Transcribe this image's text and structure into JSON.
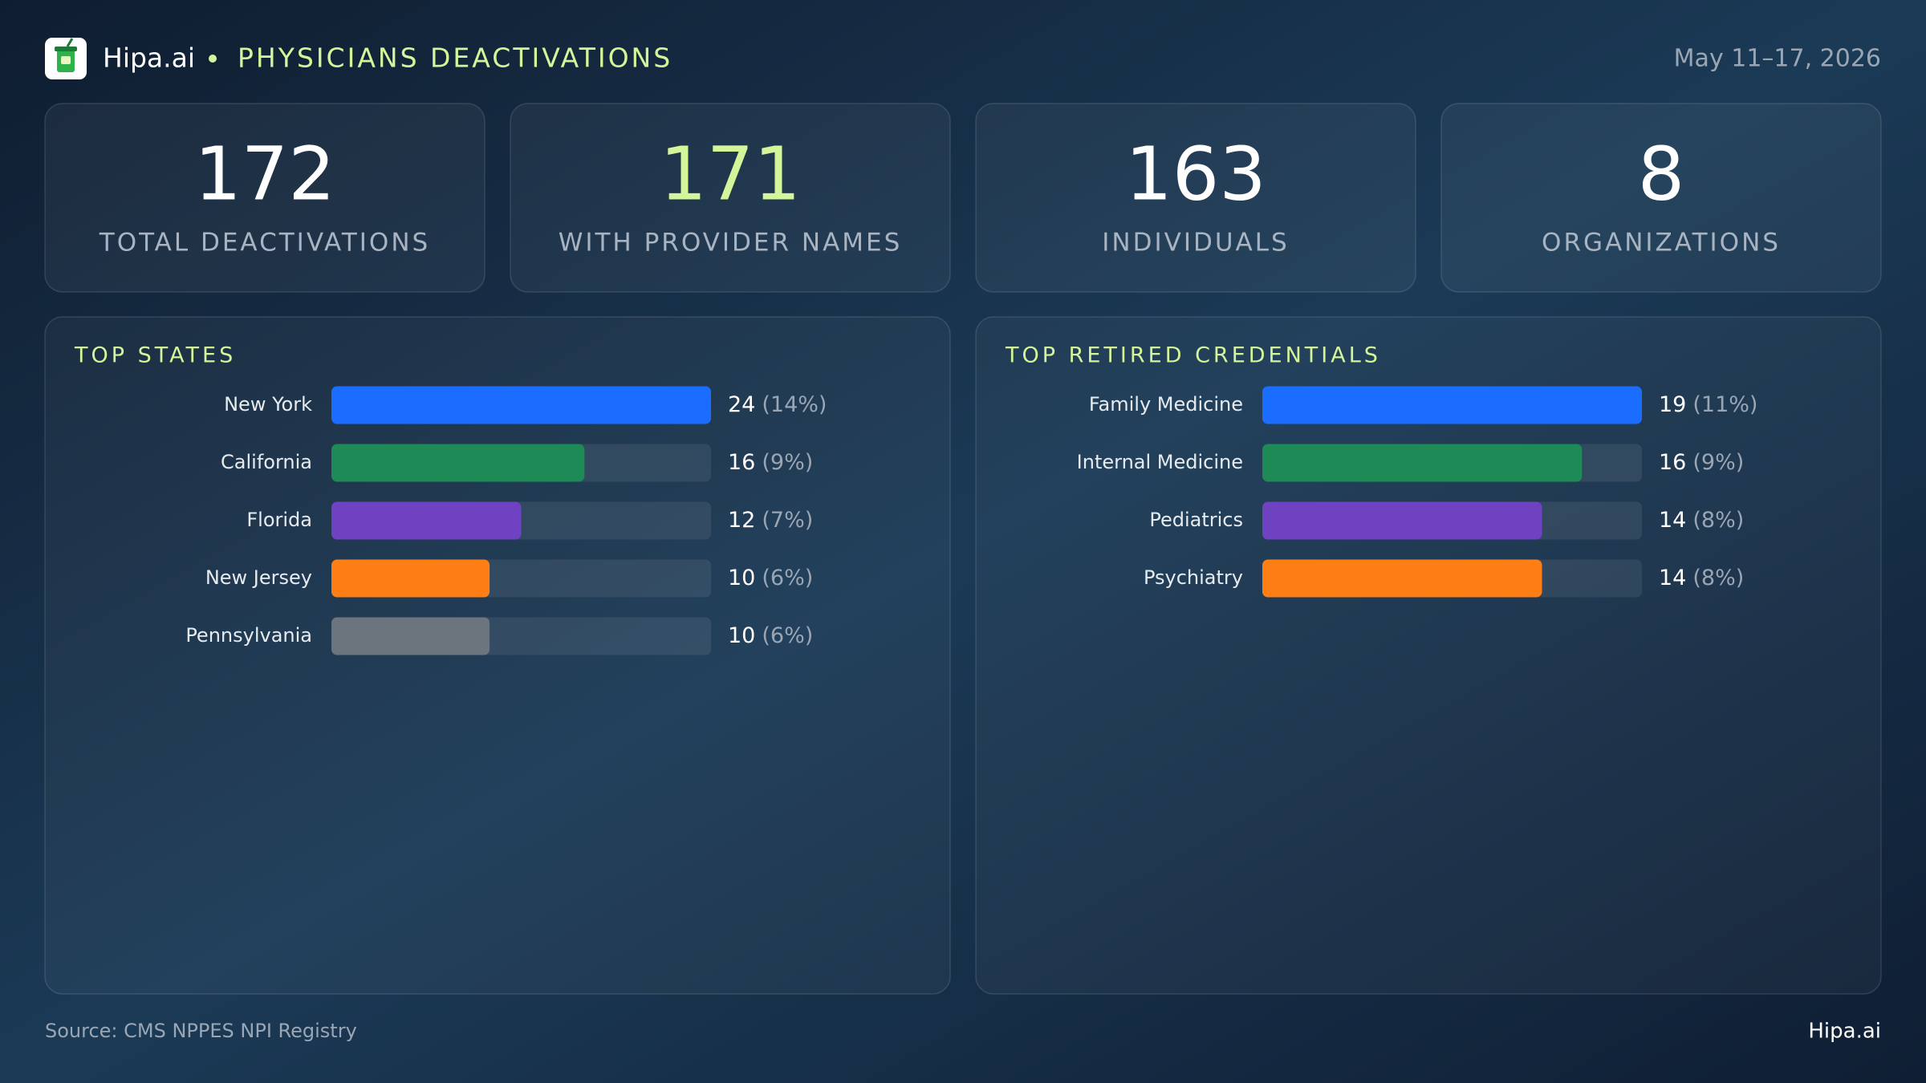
{
  "header": {
    "brand": "Hipa.ai",
    "title": "PHYSICIANS DEACTIVATIONS",
    "date": "May 11–17, 2026"
  },
  "stats": [
    {
      "value": 172,
      "label": "TOTAL DEACTIVATIONS"
    },
    {
      "value": 171,
      "label": "WITH PROVIDER NAMES"
    },
    {
      "value": 163,
      "label": "INDIVIDUALS"
    },
    {
      "value": 8,
      "label": "ORGANIZATIONS"
    }
  ],
  "chart_data": [
    {
      "type": "bar",
      "orientation": "horizontal",
      "title": "TOP STATES",
      "categories": [
        "New York",
        "California",
        "Florida",
        "New Jersey",
        "Pennsylvania"
      ],
      "values": [
        24,
        16,
        12,
        10,
        10
      ],
      "share_labels": [
        "(14%)",
        "(9%)",
        "(7%)",
        "(6%)",
        "(6%)"
      ],
      "colors": [
        "#1a6dff",
        "#1e8a55",
        "#6e42c1",
        "#fd7e14",
        "#6c757d"
      ],
      "xlim": [
        0,
        24
      ]
    },
    {
      "type": "bar",
      "orientation": "horizontal",
      "title": "TOP RETIRED CREDENTIALS",
      "categories": [
        "Family Medicine",
        "Internal Medicine",
        "Pediatrics",
        "Psychiatry"
      ],
      "values": [
        19,
        16,
        14,
        14
      ],
      "share_labels": [
        "(11%)",
        "(9%)",
        "(8%)",
        "(8%)"
      ],
      "colors": [
        "#1a6dff",
        "#1e8a55",
        "#6e42c1",
        "#fd7e14"
      ],
      "xlim": [
        0,
        19
      ]
    }
  ],
  "footer": {
    "source": "Source: CMS NPPES NPI Registry",
    "brand": "Hipa.ai"
  }
}
